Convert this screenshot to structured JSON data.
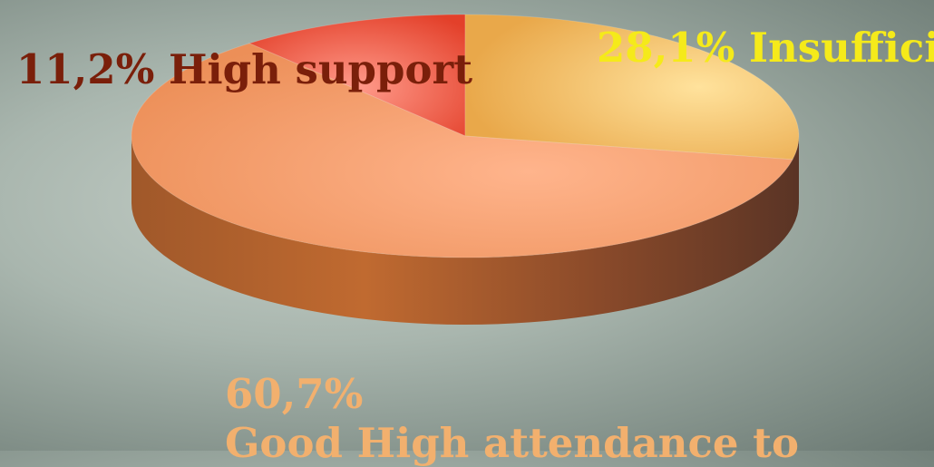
{
  "chart_data": {
    "type": "pie",
    "style": "3d",
    "slices": [
      {
        "label": "11,2% High support",
        "value": 11.2,
        "color": "#f08070"
      },
      {
        "label": "28,1% Insuffici",
        "value": 28.1,
        "color": "#f3c27a"
      },
      {
        "label": "60,7%",
        "sublabel": "Good High attendance to",
        "value": 60.7,
        "color": "#f09a66"
      }
    ]
  }
}
